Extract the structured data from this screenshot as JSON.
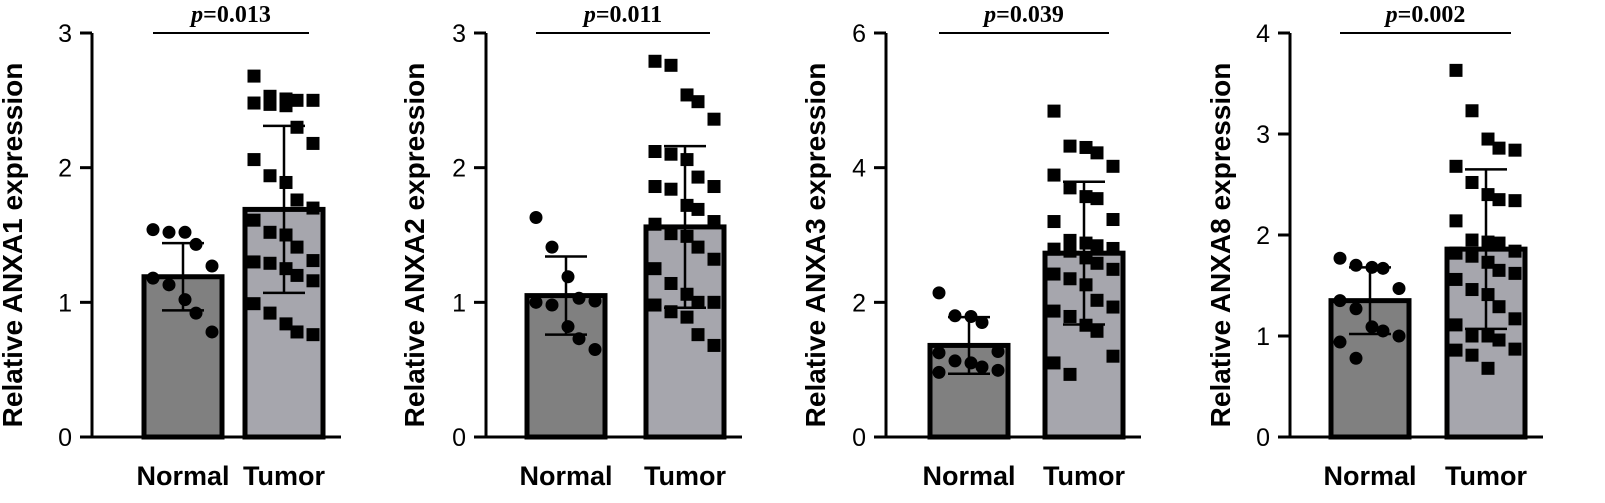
{
  "chart_data": [
    {
      "type": "bar",
      "ylabel": "Relative ANXA1 expression",
      "categories": [
        "Normal",
        "Tumor"
      ],
      "ylim": [
        0,
        3
      ],
      "yticks": [
        0,
        1,
        2,
        3
      ],
      "ytick_labels": [
        "0",
        "1",
        "2",
        "3"
      ],
      "bar_colors": [
        "#808080",
        "#a6a6ad"
      ],
      "values": [
        1.19,
        1.69
      ],
      "sd": [
        0.25,
        0.62
      ],
      "pvalue_label": "p=0.013",
      "points": {
        "Normal": [
          1.54,
          1.52,
          1.52,
          1.43,
          1.27,
          1.18,
          1.13,
          1.02,
          0.92,
          0.78
        ],
        "Tumor": [
          2.68,
          2.53,
          2.51,
          2.5,
          2.5,
          2.48,
          2.47,
          2.46,
          2.3,
          2.18,
          2.06,
          1.94,
          1.89,
          1.76,
          1.7,
          1.61,
          1.52,
          1.5,
          1.41,
          1.31,
          1.3,
          1.29,
          1.25,
          1.2,
          1.16,
          0.99,
          0.92,
          0.84,
          0.78,
          0.76
        ]
      }
    },
    {
      "type": "bar",
      "ylabel": "Relative ANXA2 expression",
      "categories": [
        "Normal",
        "Tumor"
      ],
      "ylim": [
        0,
        3
      ],
      "yticks": [
        0,
        1,
        2,
        3
      ],
      "ytick_labels": [
        "0",
        "1",
        "2",
        "3"
      ],
      "bar_colors": [
        "#808080",
        "#a6a6ad"
      ],
      "values": [
        1.05,
        1.56
      ],
      "sd": [
        0.29,
        0.6
      ],
      "pvalue_label": "p=0.011",
      "points": {
        "Normal": [
          1.63,
          1.41,
          1.19,
          1.03,
          1.01,
          1.0,
          0.98,
          0.82,
          0.73,
          0.65
        ],
        "Tumor": [
          2.79,
          2.76,
          2.54,
          2.49,
          2.36,
          2.12,
          2.1,
          2.06,
          1.93,
          1.86,
          1.86,
          1.84,
          1.72,
          1.69,
          1.6,
          1.58,
          1.51,
          1.49,
          1.41,
          1.32,
          1.25,
          1.14,
          1.06,
          1.0,
          1.0,
          0.98,
          0.93,
          0.89,
          0.76,
          0.68
        ]
      }
    },
    {
      "type": "bar",
      "ylabel": "Relative ANXA3 expression",
      "categories": [
        "Normal",
        "Tumor"
      ],
      "ylim": [
        0,
        6
      ],
      "yticks": [
        0,
        2,
        4,
        6
      ],
      "ytick_labels": [
        "0",
        "2",
        "4",
        "6"
      ],
      "bar_colors": [
        "#808080",
        "#a6a6ad"
      ],
      "values": [
        1.36,
        2.73
      ],
      "sd": [
        0.42,
        1.06
      ],
      "pvalue_label": "p=0.039",
      "points": {
        "Normal": [
          2.14,
          1.8,
          1.79,
          1.7,
          1.27,
          1.25,
          1.13,
          1.1,
          1.04,
          0.99,
          0.96
        ],
        "Tumor": [
          4.84,
          4.32,
          4.3,
          4.22,
          4.02,
          3.89,
          3.7,
          3.57,
          3.54,
          3.23,
          3.2,
          2.92,
          2.88,
          2.84,
          2.8,
          2.79,
          2.76,
          2.66,
          2.58,
          2.49,
          2.42,
          2.35,
          2.26,
          2.03,
          1.93,
          1.87,
          1.79,
          1.66,
          1.57,
          1.2,
          1.1,
          0.93
        ]
      }
    },
    {
      "type": "bar",
      "ylabel": "Relative ANXA8 expression",
      "categories": [
        "Normal",
        "Tumor"
      ],
      "ylim": [
        0,
        4
      ],
      "yticks": [
        0,
        1,
        2,
        3,
        4
      ],
      "ytick_labels": [
        "0",
        "1",
        "2",
        "3",
        "4"
      ],
      "bar_colors": [
        "#808080",
        "#a6a6ad"
      ],
      "values": [
        1.35,
        1.86
      ],
      "sd": [
        0.33,
        0.79
      ],
      "pvalue_label": "p=0.002",
      "points": {
        "Normal": [
          1.77,
          1.7,
          1.68,
          1.67,
          1.47,
          1.35,
          1.27,
          1.09,
          1.05,
          1.0,
          0.94,
          0.78
        ],
        "Tumor": [
          3.63,
          3.23,
          2.95,
          2.86,
          2.84,
          2.68,
          2.52,
          2.4,
          2.35,
          2.34,
          2.14,
          1.95,
          1.93,
          1.92,
          1.84,
          1.82,
          1.79,
          1.73,
          1.65,
          1.62,
          1.56,
          1.46,
          1.41,
          1.29,
          1.17,
          1.11,
          1.0,
          1.0,
          0.96,
          0.87,
          0.86,
          0.81,
          0.68
        ]
      }
    }
  ]
}
